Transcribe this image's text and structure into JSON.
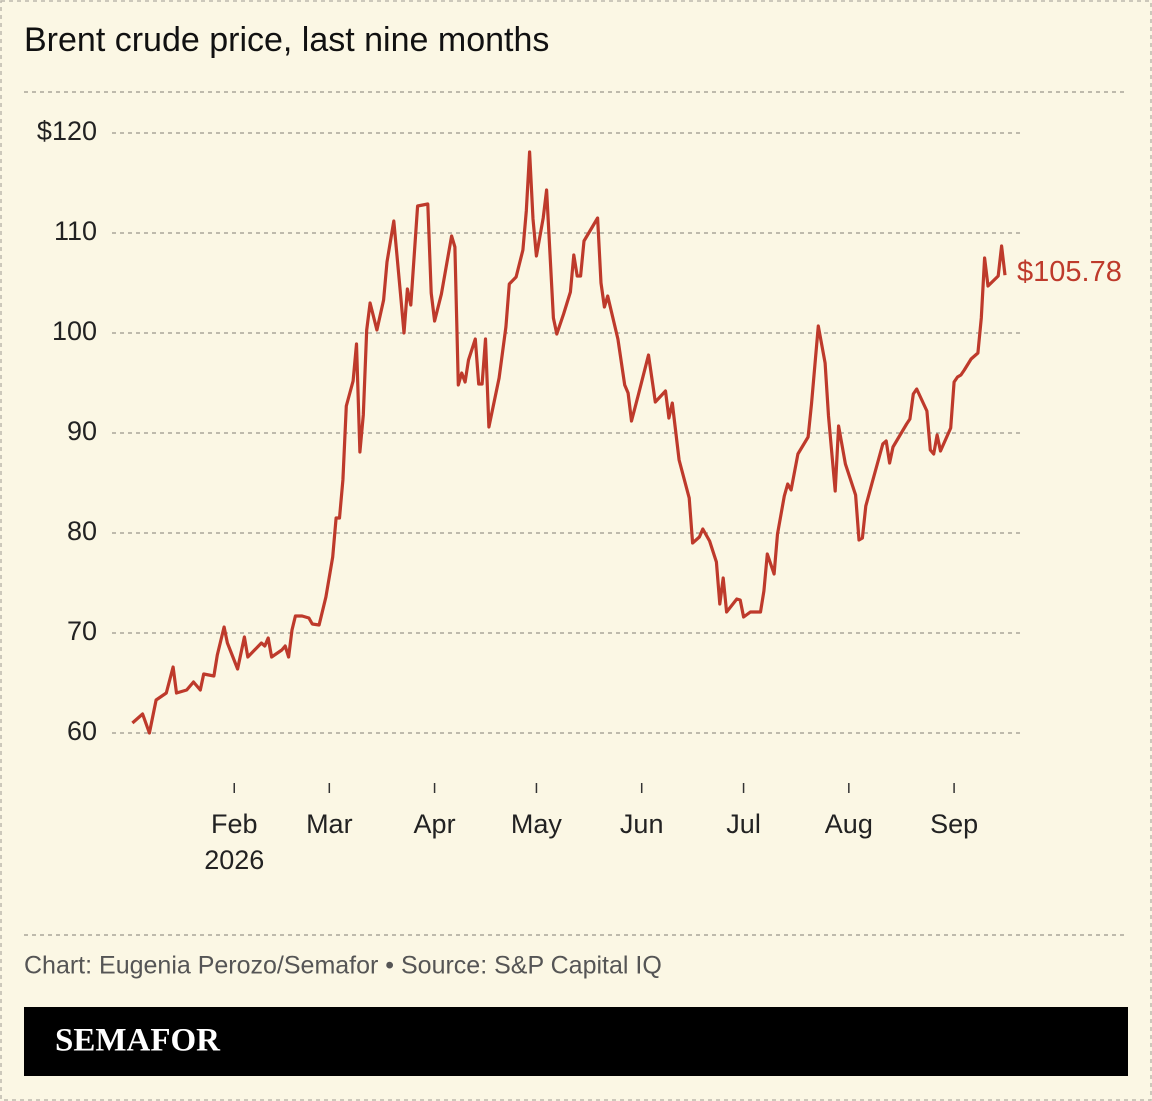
{
  "chart_data": {
    "type": "line",
    "title": "Brent crude price, last nine months",
    "x_year_label": "2026",
    "x": [
      2,
      5,
      7,
      9,
      12,
      14,
      15,
      18,
      20,
      22,
      23,
      26,
      27,
      29,
      30,
      33,
      35,
      36,
      38,
      40,
      41,
      42,
      43,
      46,
      47,
      48,
      49,
      50,
      52,
      54,
      55,
      57,
      59,
      61,
      62,
      63,
      64,
      65,
      67,
      68,
      69,
      70,
      71,
      72,
      74,
      76,
      77,
      79,
      81,
      82,
      83,
      84,
      86,
      89,
      90,
      91,
      93,
      96,
      97,
      98,
      99,
      100,
      101,
      103,
      104,
      105,
      106,
      107,
      110,
      112,
      113,
      115,
      117,
      118,
      119,
      120,
      121,
      123,
      124,
      126,
      127,
      129,
      131,
      132,
      133,
      134,
      135,
      139,
      140,
      141,
      142,
      145,
      147,
      148,
      149,
      151,
      154,
      156,
      159,
      160,
      161,
      163,
      166,
      167,
      169,
      170,
      172,
      174,
      175,
      176,
      177,
      180,
      181,
      182,
      184,
      187,
      188,
      189,
      191,
      192,
      194,
      195,
      196,
      198,
      201,
      202,
      203,
      204,
      206,
      207,
      209,
      210,
      212,
      215,
      216,
      217,
      218,
      220,
      223,
      224,
      225,
      226,
      230,
      231,
      232,
      233,
      236,
      237,
      238,
      239,
      240,
      243,
      244,
      245,
      246,
      247,
      249,
      251,
      252,
      253,
      254,
      257,
      258,
      259
    ],
    "series": [
      {
        "color": "#be3a2b",
        "values": [
          61.0,
          61.9,
          60.0,
          63.3,
          64.0,
          66.6,
          64.0,
          64.3,
          65.1,
          64.3,
          65.9,
          65.7,
          67.8,
          70.6,
          69.0,
          66.4,
          69.6,
          67.6,
          68.3,
          69.0,
          68.7,
          69.5,
          67.6,
          68.3,
          68.7,
          67.6,
          70.3,
          71.7,
          71.7,
          71.5,
          70.9,
          70.8,
          73.6,
          77.6,
          81.5,
          81.5,
          85.3,
          92.7,
          95.2,
          98.9,
          88.1,
          91.8,
          100.3,
          103.0,
          100.3,
          103.3,
          107.1,
          111.2,
          103.8,
          100.0,
          104.4,
          102.8,
          112.7,
          112.9,
          104.0,
          101.2,
          103.9,
          109.7,
          108.6,
          94.8,
          96.0,
          95.1,
          97.3,
          99.4,
          94.9,
          94.9,
          99.4,
          90.6,
          95.5,
          100.6,
          104.9,
          105.6,
          108.3,
          112.2,
          118.1,
          111.4,
          107.7,
          111.5,
          114.3,
          101.5,
          99.9,
          101.9,
          104.1,
          107.8,
          105.7,
          105.7,
          109.2,
          111.5,
          105.0,
          102.6,
          103.7,
          99.4,
          94.8,
          94.0,
          91.2,
          93.8,
          97.8,
          93.1,
          94.2,
          91.5,
          93.0,
          87.3,
          83.5,
          79.0,
          79.6,
          80.4,
          79.2,
          77.1,
          72.9,
          75.5,
          72.1,
          73.4,
          73.3,
          71.6,
          72.1,
          72.1,
          74.2,
          77.9,
          75.9,
          79.9,
          83.7,
          84.9,
          84.3,
          87.9,
          89.6,
          92.9,
          96.8,
          100.7,
          97.0,
          91.7,
          84.2,
          90.7,
          86.9,
          83.8,
          79.3,
          79.5,
          82.7,
          85.2,
          88.9,
          89.2,
          87.0,
          88.6,
          90.9,
          91.4,
          93.9,
          94.4,
          92.2,
          88.3,
          87.9,
          89.8,
          88.2,
          90.5,
          95.1,
          95.6,
          95.8,
          96.3,
          97.4,
          98.0,
          101.5,
          107.5,
          104.7,
          105.7,
          108.7,
          105.78
        ],
        "value_labels": [
          null,
          null,
          null,
          null,
          null,
          null,
          null,
          null,
          null,
          null,
          null,
          null,
          null,
          null,
          null,
          null,
          null,
          null,
          null,
          null,
          null,
          null,
          null,
          null,
          null,
          null,
          null,
          null,
          null,
          null,
          null,
          null,
          null,
          null,
          null,
          null,
          null,
          null,
          null,
          null,
          null,
          null,
          null,
          null,
          null,
          null,
          null,
          null,
          null,
          null,
          null,
          null,
          null,
          null,
          null,
          null,
          null,
          null,
          null,
          null,
          null,
          null,
          null,
          null,
          null,
          null,
          null,
          null,
          null,
          null,
          null,
          null,
          null,
          null,
          null,
          null,
          null,
          null,
          null,
          null,
          null,
          null,
          null,
          null,
          null,
          null,
          null,
          null,
          null,
          null,
          null,
          null,
          null,
          null,
          null,
          null,
          null,
          null,
          null,
          null,
          null,
          null,
          null,
          null,
          null,
          null,
          null,
          null,
          null,
          null,
          null,
          null,
          null,
          null,
          null,
          null,
          null,
          null,
          null,
          null,
          null,
          null,
          null,
          null,
          null,
          null,
          null,
          null,
          null,
          null,
          null,
          null,
          null,
          null,
          null,
          null,
          null,
          null,
          null,
          null,
          null,
          null,
          null,
          null,
          null,
          null,
          null,
          null,
          null,
          null,
          null,
          null,
          null,
          null,
          null,
          null,
          null,
          null,
          null,
          null,
          null,
          null,
          null,
          "$105.78"
        ]
      }
    ],
    "xlim": [
      -4,
      264
    ],
    "xticks": [
      {
        "value": 32,
        "label": "Feb"
      },
      {
        "value": 60,
        "label": "Mar"
      },
      {
        "value": 91,
        "label": "Apr"
      },
      {
        "value": 121,
        "label": "May"
      },
      {
        "value": 152,
        "label": "Jun"
      },
      {
        "value": 182,
        "label": "Jul"
      },
      {
        "value": 213,
        "label": "Aug"
      },
      {
        "value": 244,
        "label": "Sep"
      }
    ],
    "ylim": [
      60,
      120
    ],
    "yticks": [
      60,
      70,
      80,
      90,
      100,
      110,
      {
        "value": 120,
        "label": "$120"
      }
    ],
    "grid": true
  },
  "footer": {
    "credit": "Chart: Eugenia Perozo/Semafor • Source: S&P Capital IQ",
    "brand": "SEMAFOR"
  }
}
